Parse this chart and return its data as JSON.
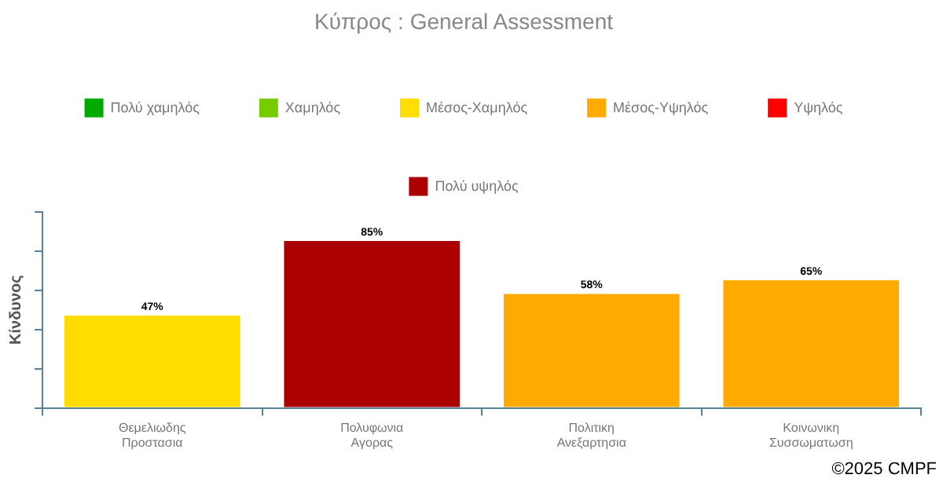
{
  "chart_data": {
    "type": "bar",
    "title": "Κύπρος : General Assessment",
    "ylabel": "Κίνδυνος",
    "categories": [
      "Θεμελιωδης\nΠροστασια",
      "Πολυφωνια\nΑγορας",
      "Πολιτικη\nΑνεξαρτησια",
      "Κοινωνικη\nΣυσσωματωση"
    ],
    "series": [
      {
        "name": "Πολύ χαμηλός",
        "color": "#00aa00",
        "values": [
          null,
          null,
          null,
          null
        ]
      },
      {
        "name": "Χαμηλός",
        "color": "#77cc00",
        "values": [
          null,
          null,
          null,
          null
        ]
      },
      {
        "name": "Μέσος-Χαμηλός",
        "color": "#ffdd00",
        "values": [
          47,
          null,
          null,
          null
        ],
        "value_labels": [
          "47%",
          null,
          null,
          null
        ]
      },
      {
        "name": "Μέσος-Υψηλός",
        "color": "#ffaa00",
        "values": [
          null,
          null,
          58,
          65
        ],
        "value_labels": [
          null,
          null,
          "58%",
          "65%"
        ]
      },
      {
        "name": "Υψηλός",
        "color": "#ff0000",
        "values": [
          null,
          null,
          null,
          null
        ]
      },
      {
        "name": "Πολύ υψηλός",
        "color": "#aa0000",
        "values": [
          null,
          85,
          null,
          null
        ],
        "value_labels": [
          null,
          "85%",
          null,
          null
        ]
      }
    ],
    "stacked": true,
    "ylim": [
      0,
      100
    ],
    "yticks": [
      {
        "value": 0,
        "label": null
      },
      {
        "value": 20,
        "label": null
      },
      {
        "value": 40,
        "label": null
      },
      {
        "value": 60,
        "label": null
      },
      {
        "value": 80,
        "label": null
      },
      {
        "value": 100,
        "label": null
      }
    ],
    "tick_labels": "x",
    "grid": false,
    "legend": "top",
    "annotations": [
      "©2025 CMPF"
    ]
  }
}
